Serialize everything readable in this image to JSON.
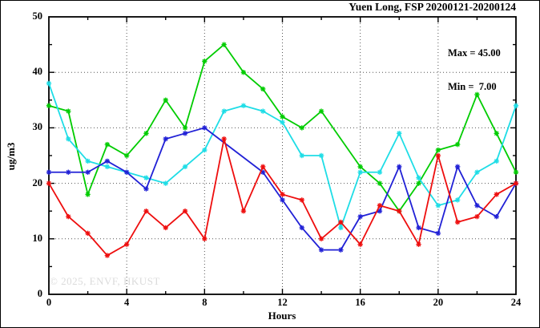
{
  "title": "Yuen Long, FSP 20200121-20200124",
  "annotation": {
    "max_label": "Max = 45.00",
    "min_label": "Min =  7.00"
  },
  "watermark": "© 2025, ENVF, HKUST",
  "chart_data": {
    "type": "line",
    "title": "Yuen Long, FSP 20200121-20200124",
    "xlabel": "Hours",
    "ylabel": "ug/m3",
    "xlim": [
      0,
      24
    ],
    "ylim": [
      0,
      50
    ],
    "x_major_ticks": [
      0,
      4,
      8,
      12,
      16,
      20,
      24
    ],
    "x_minor_step": 2,
    "y_major_ticks": [
      0,
      10,
      20,
      30,
      40,
      50
    ],
    "y_minor_step": 5,
    "grid": "dotted lines at x=4,8,12,16,20 and y=10,20,30,40",
    "legend": "none",
    "marker": "asterisk",
    "x": [
      0,
      1,
      2,
      3,
      4,
      5,
      6,
      7,
      8,
      9,
      10,
      11,
      12,
      13,
      14,
      15,
      16,
      17,
      18,
      19,
      20,
      21,
      22,
      23,
      24
    ],
    "series": [
      {
        "name": "series-green",
        "color": "#00cc00",
        "values": [
          34,
          33,
          18,
          27,
          25,
          29,
          35,
          30,
          42,
          45,
          40,
          37,
          32,
          30,
          33,
          null,
          23,
          20,
          15,
          20,
          26,
          27,
          36,
          29,
          22
        ]
      },
      {
        "name": "series-cyan",
        "color": "#1edde6",
        "values": [
          38,
          28,
          24,
          23,
          22,
          21,
          20,
          23,
          26,
          33,
          34,
          33,
          31,
          25,
          25,
          12,
          22,
          22,
          29,
          21,
          16,
          17,
          22,
          24,
          34
        ]
      },
      {
        "name": "series-blue",
        "color": "#2121d6",
        "values": [
          22,
          22,
          22,
          24,
          22,
          19,
          28,
          29,
          30,
          null,
          null,
          22,
          17,
          12,
          8,
          8,
          14,
          15,
          23,
          12,
          11,
          23,
          16,
          14,
          20
        ]
      },
      {
        "name": "series-red",
        "color": "#ee0e0e",
        "values": [
          20,
          14,
          11,
          7,
          9,
          15,
          12,
          15,
          10,
          28,
          15,
          23,
          18,
          17,
          10,
          13,
          9,
          16,
          15,
          9,
          25,
          13,
          14,
          18,
          20
        ]
      }
    ],
    "stats": {
      "max": 45.0,
      "min": 7.0
    }
  }
}
